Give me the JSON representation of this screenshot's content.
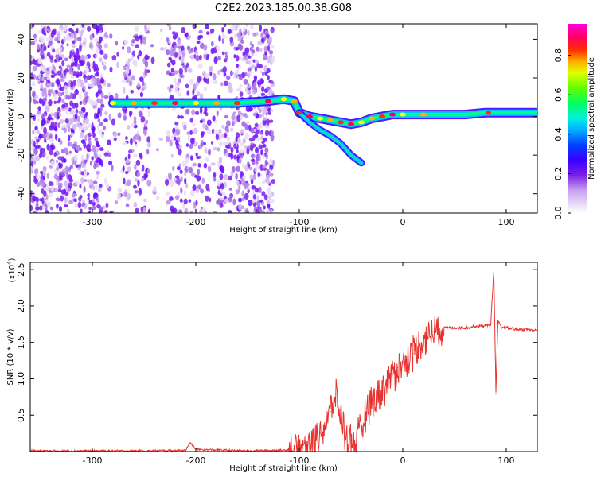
{
  "title": "C2E2.2023.185.00.38.G08",
  "chart_data": [
    {
      "type": "heatmap",
      "xlabel": "Height of straight line (km)",
      "ylabel": "Frequency (Hz)",
      "xlim": [
        -360,
        130
      ],
      "ylim": [
        -50,
        48
      ],
      "xticks": [
        -300,
        -200,
        -100,
        0,
        100
      ],
      "yticks": [
        -40,
        -20,
        0,
        20,
        40
      ],
      "colorbar": {
        "label": "Normalized spectral amplitude",
        "range": [
          0,
          0.96
        ],
        "ticks": [
          "0.0",
          "0.2",
          "0.4",
          "0.6",
          "0.8"
        ],
        "colormap": [
          "#ffffff",
          "#e6d6f5",
          "#c9a6ef",
          "#8a2be2",
          "#5a00ff",
          "#0000ff",
          "#00bfff",
          "#00ffcc",
          "#00ff00",
          "#b0ff00",
          "#ffff00",
          "#ff8c00",
          "#ff0000",
          "#ff0080",
          "#ff00ff"
        ]
      },
      "ridge": [
        [
          -280,
          7
        ],
        [
          -260,
          7
        ],
        [
          -240,
          7
        ],
        [
          -220,
          7
        ],
        [
          -200,
          7
        ],
        [
          -180,
          7
        ],
        [
          -160,
          7
        ],
        [
          -130,
          8
        ],
        [
          -115,
          9
        ],
        [
          -105,
          8
        ],
        [
          -100,
          2
        ],
        [
          -90,
          0
        ],
        [
          -80,
          -1
        ],
        [
          -70,
          -2
        ],
        [
          -60,
          -3
        ],
        [
          -50,
          -4
        ],
        [
          -40,
          -3
        ],
        [
          -30,
          -1
        ],
        [
          -20,
          0
        ],
        [
          -10,
          1
        ],
        [
          0,
          1
        ],
        [
          20,
          1
        ],
        [
          40,
          1
        ],
        [
          60,
          1
        ],
        [
          80,
          2
        ],
        [
          100,
          2
        ],
        [
          130,
          2
        ]
      ],
      "branch": [
        [
          -100,
          2
        ],
        [
          -90,
          -3
        ],
        [
          -80,
          -7
        ],
        [
          -70,
          -10
        ],
        [
          -60,
          -14
        ],
        [
          -50,
          -20
        ],
        [
          -40,
          -24
        ]
      ]
    },
    {
      "type": "line",
      "xlabel": "Height of straight line (km)",
      "ylabel": "SNR (10 * v/v)",
      "multiplier": "(x10",
      "multiplier_exp": "4",
      "multiplier_close": ")",
      "xlim": [
        -360,
        130
      ],
      "ylim": [
        0,
        2.6
      ],
      "xticks": [
        -300,
        -200,
        -100,
        0,
        100
      ],
      "yticks": [
        0.5,
        1.0,
        1.5,
        2.0,
        2.5
      ],
      "ytick_labels": [
        "0.5",
        "1.0",
        "1.5",
        "2.0",
        "2.5"
      ],
      "color": "#e8322f",
      "series": [
        {
          "x": [
            -360,
            -300,
            -250,
            -210,
            -205,
            -200,
            -150,
            -115,
            -100,
            -90,
            -80,
            -75,
            -70,
            -65,
            -60,
            -55,
            -50,
            -45,
            -40,
            -35,
            -30,
            -25,
            -20,
            -15,
            -10,
            -5,
            0,
            5,
            10,
            15,
            20,
            25,
            30,
            35,
            40,
            50,
            60,
            70,
            80,
            85,
            88,
            90,
            92,
            95,
            100,
            110,
            120,
            130
          ],
          "y": [
            0.01,
            0.01,
            0.01,
            0.02,
            0.12,
            0.03,
            0.01,
            0.02,
            0.05,
            0.12,
            0.25,
            0.35,
            0.55,
            0.75,
            0.5,
            0.2,
            0.15,
            0.1,
            0.3,
            0.6,
            0.7,
            0.75,
            0.85,
            0.95,
            1.05,
            1.15,
            1.2,
            1.3,
            1.35,
            1.45,
            1.55,
            1.6,
            1.65,
            1.68,
            1.7,
            1.7,
            1.7,
            1.72,
            1.73,
            1.75,
            2.5,
            0.8,
            1.8,
            1.7,
            1.7,
            1.68,
            1.68,
            1.66
          ]
        }
      ]
    }
  ]
}
